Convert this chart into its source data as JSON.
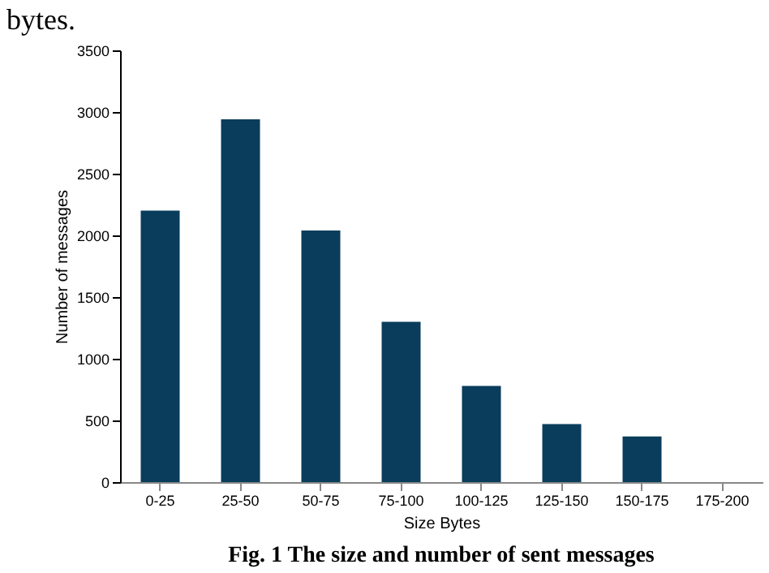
{
  "chart_data": {
    "type": "bar",
    "xlabel": "Size Bytes",
    "ylabel": "Number of messages",
    "categories": [
      "0-25",
      "25-50",
      "50-75",
      "75-100",
      "100-125",
      "125-150",
      "150-175",
      "175-200"
    ],
    "values": [
      2200,
      2940,
      2040,
      1300,
      780,
      470,
      370,
      0
    ],
    "color": "#0a3d5c",
    "ylim": [
      0,
      3500
    ],
    "yticks": [
      0,
      500,
      1000,
      1500,
      2000,
      2500,
      3000,
      3500
    ],
    "grid": false,
    "annotations": [
      "bytes.",
      "Fig. 1 The size and number of sent messages"
    ]
  }
}
